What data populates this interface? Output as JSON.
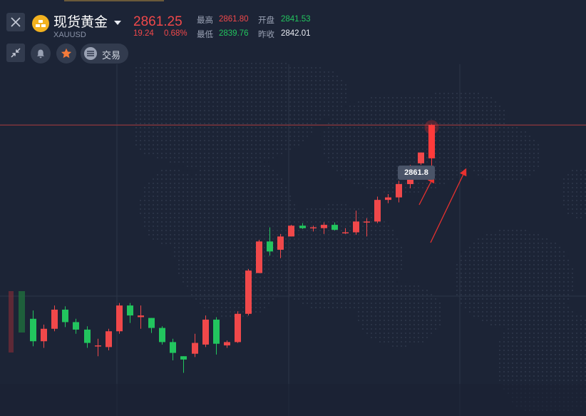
{
  "header": {
    "symbol_name": "现货黄金",
    "symbol_code": "XAUUSD",
    "last_price": "2861.25",
    "change": "19.24",
    "change_pct": "0.68%",
    "stats": {
      "high_label": "最高",
      "high_value": "2861.80",
      "open_label": "开盘",
      "open_value": "2841.53",
      "low_label": "最低",
      "low_value": "2839.76",
      "prev_close_label": "昨收",
      "prev_close_value": "2842.01"
    }
  },
  "toolbar": {
    "close_icon": "close-icon",
    "collapse_icon": "collapse-arrows-icon",
    "alert_icon": "bell-icon",
    "favorite_icon": "star-icon",
    "trade_icon": "menu-lines-icon",
    "trade_label": "交易"
  },
  "chart": {
    "price_tag": "2861.8"
  },
  "colors": {
    "background": "#1c2436",
    "up": "#f0484a",
    "down": "#22c55e",
    "star": "#f57b3a",
    "coin": "#f3b21f",
    "price_line": "#b53a3a"
  },
  "chart_data": {
    "type": "candlestick",
    "series": [
      {
        "name": "",
        "ohlc": [
          [
            2838.5,
            2839.5,
            2835.2,
            2835.8
          ],
          [
            2835.8,
            2837.8,
            2835.0,
            2837.3
          ],
          [
            2837.3,
            2840.1,
            2837.0,
            2839.6
          ],
          [
            2839.6,
            2840.0,
            2837.5,
            2838.1
          ],
          [
            2838.1,
            2838.5,
            2836.7,
            2837.2
          ],
          [
            2837.2,
            2837.6,
            2835.0,
            2835.6
          ],
          [
            2835.3,
            2836.1,
            2834.0,
            2835.3
          ],
          [
            2835.1,
            2837.3,
            2834.7,
            2837.0
          ],
          [
            2837.0,
            2840.4,
            2836.7,
            2840.1
          ],
          [
            2840.1,
            2840.4,
            2838.0,
            2838.9
          ],
          [
            2838.7,
            2840.1,
            2837.3,
            2838.9
          ],
          [
            2838.6,
            2838.6,
            2836.8,
            2837.4
          ],
          [
            2837.4,
            2837.6,
            2835.4,
            2835.7
          ],
          [
            2835.7,
            2836.1,
            2833.5,
            2834.4
          ],
          [
            2834.0,
            2834.0,
            2832.0,
            2833.6
          ],
          [
            2834.3,
            2836.7,
            2833.9,
            2835.6
          ],
          [
            2835.4,
            2838.9,
            2835.1,
            2838.4
          ],
          [
            2838.4,
            2838.7,
            2834.2,
            2835.5
          ],
          [
            2835.3,
            2835.9,
            2835.0,
            2835.7
          ],
          [
            2835.7,
            2839.4,
            2835.6,
            2839.1
          ],
          [
            2839.1,
            2844.5,
            2838.9,
            2844.3
          ],
          [
            2844.0,
            2848.0,
            2844.0,
            2847.8
          ],
          [
            2847.8,
            2849.5,
            2846.1,
            2846.6
          ],
          [
            2846.8,
            2848.7,
            2845.8,
            2848.4
          ],
          [
            2848.4,
            2849.8,
            2848.4,
            2849.7
          ],
          [
            2849.7,
            2850.0,
            2849.3,
            2849.4
          ],
          [
            2849.4,
            2849.7,
            2849.0,
            2849.5
          ],
          [
            2849.4,
            2850.1,
            2848.7,
            2849.8
          ],
          [
            2849.8,
            2850.1,
            2849.1,
            2849.2
          ],
          [
            2848.9,
            2849.4,
            2848.7,
            2848.9
          ],
          [
            2848.9,
            2851.5,
            2848.6,
            2850.2
          ],
          [
            2850.2,
            2850.6,
            2848.4,
            2850.2
          ],
          [
            2850.2,
            2853.2,
            2850.0,
            2852.8
          ],
          [
            2852.8,
            2853.5,
            2852.4,
            2853.1
          ],
          [
            2853.1,
            2855.1,
            2852.5,
            2854.7
          ],
          [
            2854.7,
            2857.0,
            2854.2,
            2856.5
          ],
          [
            2857.2,
            2858.5,
            2857.0,
            2858.5
          ]
        ]
      }
    ],
    "current_price": 2861.8,
    "ylim": [
      2830.5,
      2868
    ]
  }
}
